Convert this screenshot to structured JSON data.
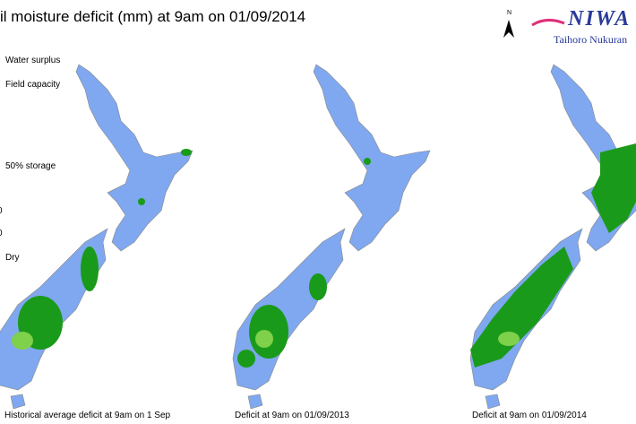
{
  "header": {
    "title": "il moisture deficit (mm) at  9am on 01/09/2014"
  },
  "legend": {
    "labels": [
      "Water surplus",
      "Field capacity",
      "50% storage",
      "0",
      "0",
      "Dry"
    ]
  },
  "maps": [
    {
      "caption": "Historical average deficit at  9am on 1 Sep"
    },
    {
      "caption": "Deficit at  9am on 01/09/2013"
    },
    {
      "caption": "Deficit at  9am on 01/09/2014"
    }
  ],
  "logo": {
    "north": "N",
    "name": "NIWA",
    "tagline": "Taihoro Nukuran"
  }
}
